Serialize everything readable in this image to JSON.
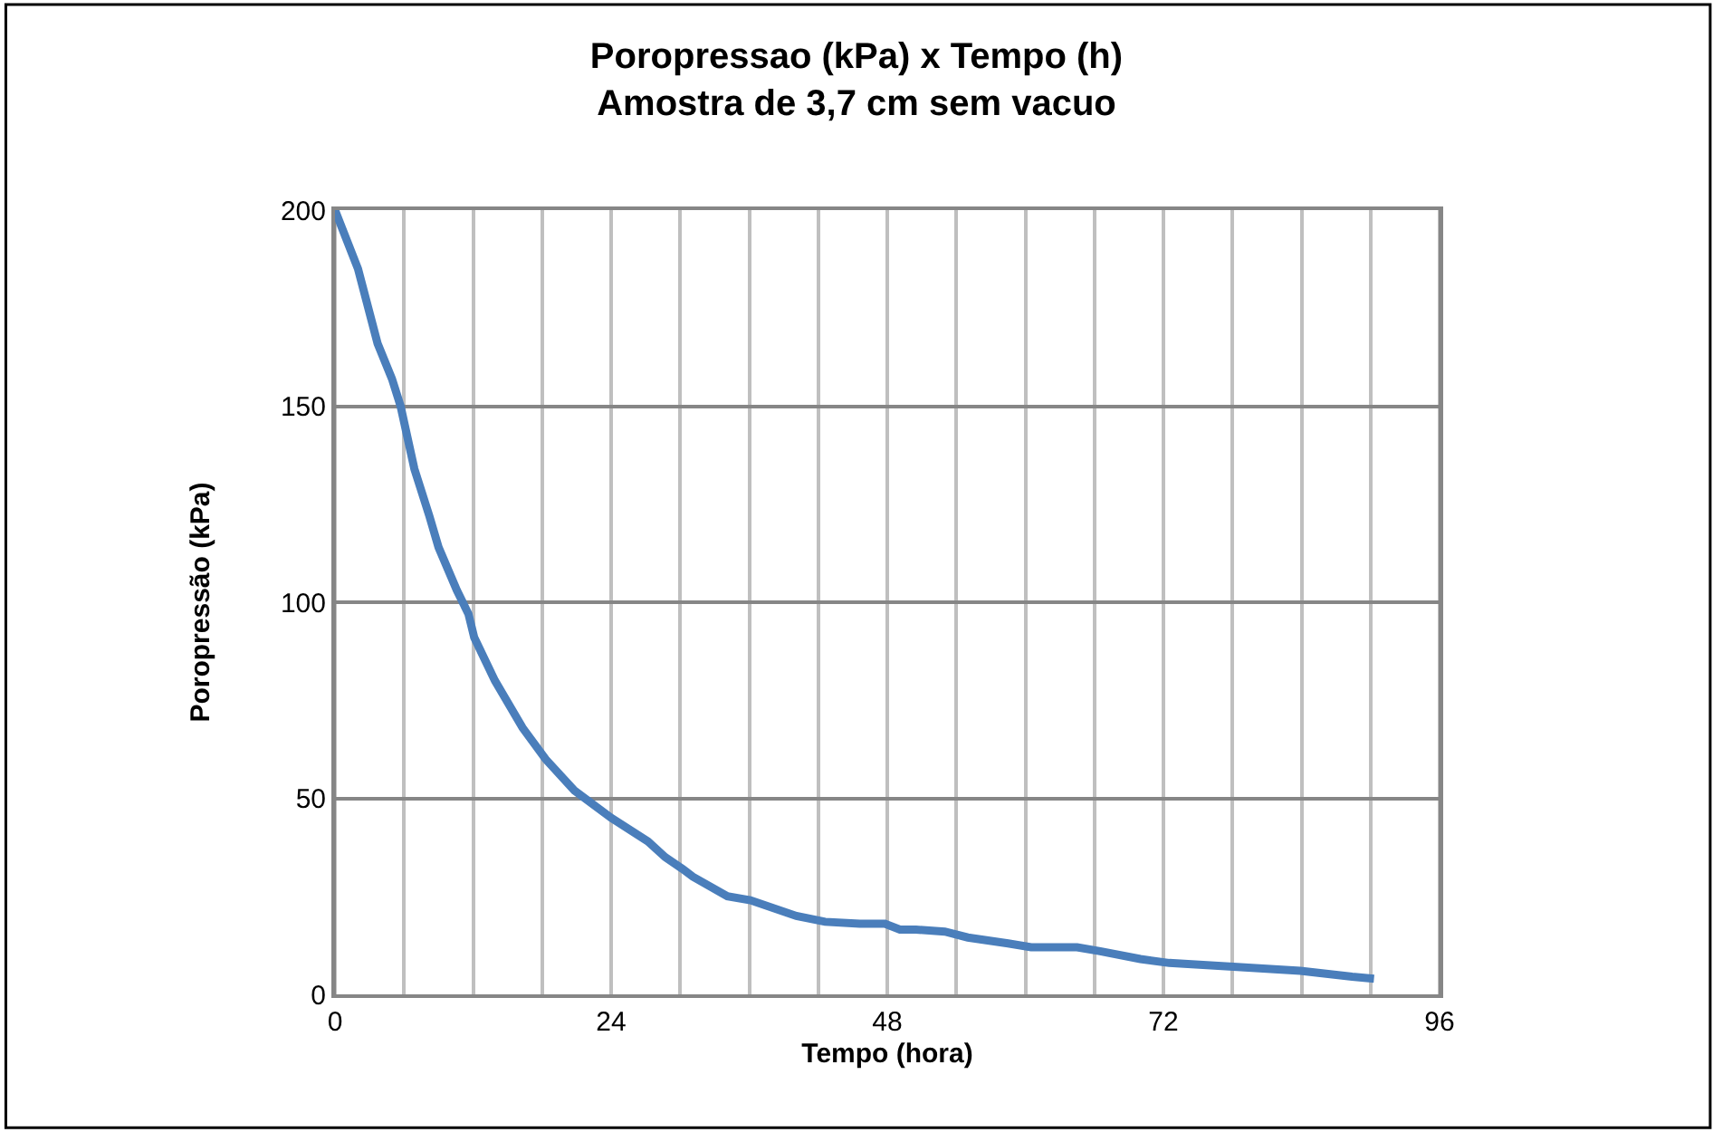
{
  "chart_data": {
    "type": "line",
    "title": "Poropressao (kPa) x Tempo (h)\nAmostra de 3,7 cm sem vacuo",
    "xlabel": "Tempo (hora)",
    "ylabel": "Poropressão (kPa)",
    "series": [
      {
        "color": "#4a7ebb",
        "x": [
          0,
          2,
          3.7,
          4.95,
          5.7,
          6.9,
          8.2,
          9.0,
          10.6,
          11.6,
          12.1,
          13.9,
          16.3,
          18.3,
          20.8,
          24,
          27.2,
          28.7,
          30.2,
          31.1,
          34.1,
          36.1,
          40.1,
          42.6,
          45.6,
          47.8,
          49.1,
          50.5,
          53,
          55,
          58.5,
          60.5,
          64.5,
          66.5,
          70,
          72.5,
          78.4,
          83.9,
          88.4,
          90.3
        ],
        "values": [
          200,
          185,
          166,
          157,
          150,
          134,
          122,
          114,
          103,
          97,
          91,
          80,
          68,
          60,
          52,
          45,
          39,
          35,
          32,
          30,
          25,
          24,
          20,
          18.5,
          18,
          18,
          16.5,
          16.5,
          16,
          14.5,
          13,
          12,
          12,
          11,
          9,
          8,
          7,
          6,
          4.5,
          4
        ]
      }
    ],
    "xlim": [
      0,
      96
    ],
    "xticks": [
      0,
      {
        "value": 6,
        "label": null
      },
      {
        "value": 12,
        "label": null
      },
      {
        "value": 18,
        "label": null
      },
      24,
      {
        "value": 30,
        "label": null
      },
      {
        "value": 36,
        "label": null
      },
      {
        "value": 42,
        "label": null
      },
      48,
      {
        "value": 54,
        "label": null
      },
      {
        "value": 60,
        "label": null
      },
      {
        "value": 66,
        "label": null
      },
      72,
      {
        "value": 78,
        "label": null
      },
      {
        "value": 84,
        "label": null
      },
      {
        "value": 90,
        "label": null
      },
      96
    ],
    "ylim": [
      0,
      200
    ],
    "yticks": [
      0,
      50,
      100,
      150,
      200
    ],
    "grid": true,
    "marker": "none",
    "line_style": "solid"
  }
}
